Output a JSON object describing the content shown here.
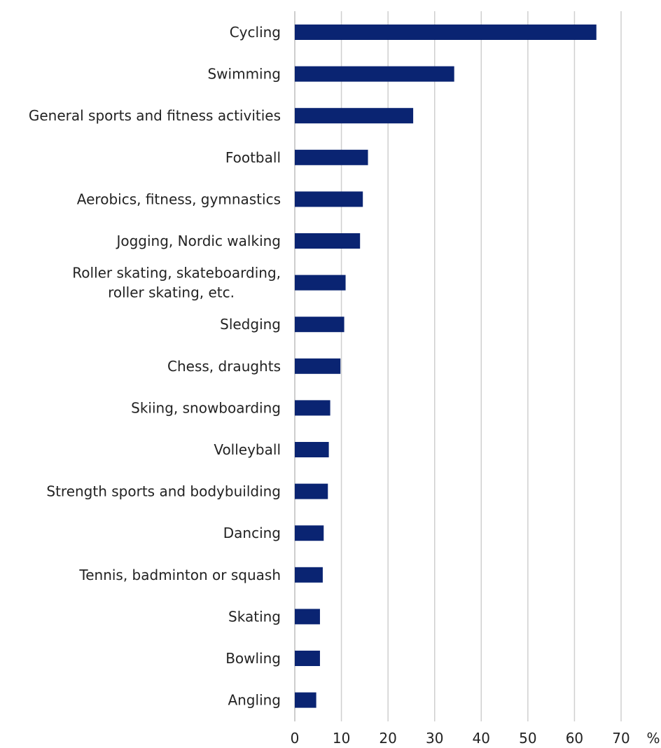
{
  "chart_data": {
    "type": "bar",
    "orientation": "horizontal",
    "categories": [
      "Cycling",
      "Swimming",
      "General sports and fitness activities",
      "Football",
      "Aerobics, fitness, gymnastics",
      "Jogging, Nordic walking",
      "Roller skating, skateboarding,\nroller skating, etc.",
      "Sledging",
      "Chess, draughts",
      "Skiing, snowboarding",
      "Volleyball",
      "Strength sports and bodybuilding",
      "Dancing",
      "Tennis, badminton or squash",
      "Skating",
      "Bowling",
      "Angling"
    ],
    "values": [
      64.7,
      34.2,
      25.4,
      15.7,
      14.6,
      14.0,
      10.9,
      10.6,
      9.8,
      7.6,
      7.3,
      7.1,
      6.2,
      6.0,
      5.4,
      5.4,
      4.6
    ],
    "x_ticks": [
      "0",
      "10",
      "20",
      "30",
      "40",
      "50",
      "60",
      "70"
    ],
    "xlim": [
      0,
      70
    ],
    "unit": "%",
    "title": "",
    "xlabel": "",
    "ylabel": "",
    "grid": "vertical",
    "legend": "none",
    "bar_color": "#0a2472",
    "grid_color": "#cfcfcf"
  }
}
